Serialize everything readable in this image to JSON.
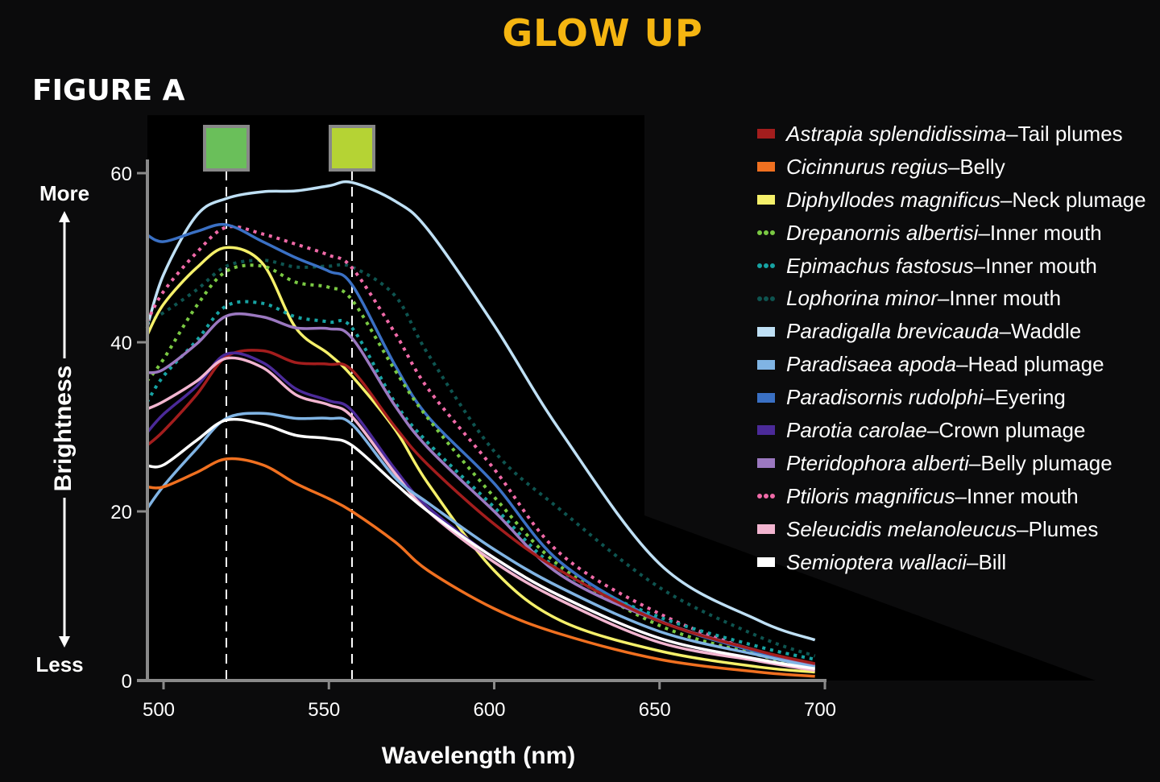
{
  "title": "GLOW UP",
  "figure_label": "FIGURE A",
  "chart_data": {
    "type": "line",
    "xlabel": "Wavelength (nm)",
    "ylabel": "Brightness",
    "y_more_label": "More",
    "y_less_label": "Less",
    "xlim": [
      495,
      700
    ],
    "ylim": [
      0,
      60
    ],
    "x_ticks": [
      500,
      550,
      600,
      650,
      700
    ],
    "y_ticks": [
      0,
      20,
      40,
      60
    ],
    "grid": false,
    "legend_position": "right",
    "reference_lines": [
      {
        "x": 519,
        "swatch_color": "#6abf5a",
        "style": "dashed"
      },
      {
        "x": 557,
        "swatch_color": "#b5d334",
        "style": "dashed"
      }
    ],
    "x": [
      495,
      500,
      510,
      519,
      530,
      540,
      550,
      557,
      570,
      580,
      600,
      620,
      650,
      680,
      697
    ],
    "series": [
      {
        "name": "Astrapia splendidissima",
        "part": "Tail plumes",
        "color": "#a31d1d",
        "style": "solid",
        "values": [
          27.8,
          29.5,
          33.8,
          38.3,
          39.0,
          37.6,
          37.4,
          36.7,
          30.0,
          25.5,
          18.5,
          13.0,
          7.0,
          3.5,
          2.0
        ]
      },
      {
        "name": "Cicinnurus regius",
        "part": "Belly",
        "color": "#f07020",
        "style": "solid",
        "values": [
          22.9,
          22.9,
          24.6,
          26.2,
          25.5,
          23.3,
          21.5,
          20.0,
          16.4,
          13.0,
          8.5,
          5.5,
          2.5,
          1.0,
          0.5
        ]
      },
      {
        "name": "Diphyllodes magnificus",
        "part": "Neck plumage",
        "color": "#f5f06a",
        "style": "solid",
        "values": [
          40.8,
          44.5,
          48.8,
          51.2,
          49.3,
          41.7,
          38.6,
          36.0,
          29.7,
          23.3,
          13.0,
          7.1,
          3.5,
          1.6,
          1.0
        ]
      },
      {
        "name": "Drepanornis albertisi",
        "part": "Inner mouth",
        "color": "#7ac943",
        "style": "dotted",
        "values": [
          35.4,
          38.0,
          44.3,
          48.4,
          49.0,
          47.1,
          46.5,
          45.0,
          36.7,
          31.0,
          21.7,
          13.5,
          6.5,
          3.0,
          1.5
        ]
      },
      {
        "name": "Epimachus fastosus",
        "part": "Inner mouth",
        "color": "#17a3a3",
        "style": "dotted",
        "values": [
          32.9,
          36.0,
          40.2,
          44.3,
          44.6,
          43.0,
          42.4,
          41.7,
          32.9,
          28.1,
          20.5,
          13.0,
          7.5,
          4.0,
          2.5
        ]
      },
      {
        "name": "Lophorina minor",
        "part": "Inner mouth",
        "color": "#0e5450",
        "style": "dotted",
        "values": [
          42.4,
          43.5,
          46.2,
          49.0,
          49.7,
          48.9,
          49.0,
          48.9,
          45.5,
          38.6,
          27.1,
          20.2,
          11.0,
          5.2,
          2.9
        ]
      },
      {
        "name": "Paradigalla brevicauda",
        "part": "Waddle",
        "color": "#bfe0f5",
        "style": "solid",
        "values": [
          41.7,
          48.0,
          55.0,
          57.0,
          57.8,
          57.9,
          58.5,
          58.9,
          56.7,
          53.3,
          42.0,
          29.5,
          13.8,
          7.1,
          4.8
        ]
      },
      {
        "name": "Paradisaea apoda",
        "part": "Head plumage",
        "color": "#80b4e4",
        "style": "solid",
        "values": [
          20.3,
          23.0,
          27.4,
          31.0,
          31.6,
          31.0,
          31.0,
          30.3,
          24.0,
          21.0,
          15.5,
          11.0,
          5.8,
          3.0,
          1.6
        ]
      },
      {
        "name": "Paradisornis rudolphi",
        "part": "Eyering",
        "color": "#3a70c4",
        "style": "solid",
        "values": [
          52.7,
          51.9,
          53.1,
          53.9,
          51.9,
          50.0,
          48.4,
          46.8,
          37.3,
          31.2,
          23.3,
          14.0,
          7.1,
          3.3,
          1.6
        ]
      },
      {
        "name": "Parotia carolae",
        "part": "Crown plumage",
        "color": "#4b2a99",
        "style": "solid",
        "values": [
          29.3,
          31.5,
          34.8,
          38.6,
          37.6,
          34.5,
          33.1,
          31.9,
          25.0,
          20.5,
          14.5,
          10.0,
          5.0,
          2.5,
          1.3
        ]
      },
      {
        "name": "Pteridophora alberti",
        "part": "Belly plumage",
        "color": "#9b78c0",
        "style": "solid",
        "values": [
          36.4,
          36.8,
          39.8,
          43.1,
          43.0,
          41.7,
          41.6,
          40.5,
          32.5,
          27.5,
          20.0,
          12.5,
          7.0,
          3.5,
          1.8
        ]
      },
      {
        "name": "Ptiloris magnificus",
        "part": "Inner mouth",
        "color": "#f06aa8",
        "style": "dotted",
        "values": [
          42.4,
          46.0,
          50.6,
          53.6,
          52.8,
          51.6,
          50.3,
          48.8,
          41.1,
          34.5,
          25.0,
          15.0,
          7.9,
          3.3,
          1.6
        ]
      },
      {
        "name": "Seleucidis melanoleucus",
        "part": "Plumes",
        "color": "#f2b5d0",
        "style": "solid",
        "values": [
          32.1,
          33.0,
          35.4,
          38.1,
          37.0,
          33.8,
          32.6,
          31.2,
          24.5,
          20.0,
          14.0,
          9.5,
          4.5,
          2.3,
          1.2
        ]
      },
      {
        "name": "Semioptera wallacii",
        "part": "Bill",
        "color": "#ffffff",
        "style": "solid",
        "values": [
          25.4,
          25.5,
          28.4,
          30.8,
          30.3,
          29.0,
          28.6,
          27.8,
          23.3,
          20.0,
          14.5,
          10.0,
          5.0,
          2.5,
          1.4
        ]
      }
    ]
  }
}
